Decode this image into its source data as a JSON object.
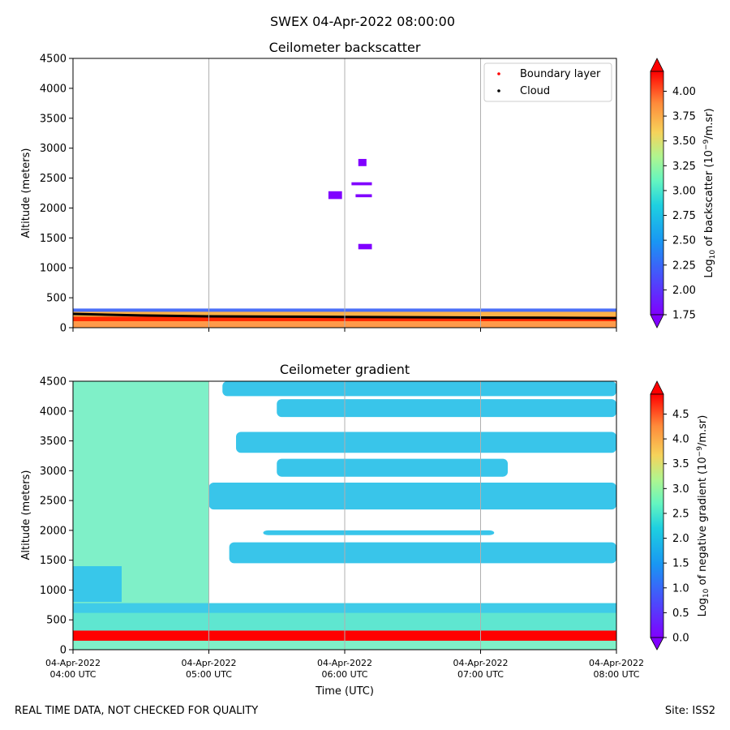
{
  "figure": {
    "title": "SWEX 04-Apr-2022 08:00:00",
    "footer_left": "REAL TIME DATA, NOT CHECKED FOR QUALITY",
    "footer_right": "Site: ISS2"
  },
  "chart_data": [
    {
      "type": "heatmap",
      "title": "Ceilometer backscatter",
      "xlabel": "",
      "ylabel": "Altitude (meters)",
      "ylim": [
        0,
        4500
      ],
      "yticks": [
        0,
        500,
        1000,
        1500,
        2000,
        2500,
        3000,
        3500,
        4000,
        4500
      ],
      "xlim": [
        4,
        8
      ],
      "xticks": [
        4,
        5,
        6,
        7,
        8
      ],
      "grid": "vertical",
      "legend": {
        "placement": "top-right",
        "entries": [
          {
            "label": "Boundary layer",
            "color": "#ff0000"
          },
          {
            "label": "Cloud",
            "color": "#000000"
          }
        ]
      },
      "colorbar": {
        "label": "Log10 of backscatter (10^-9/m.sr)",
        "label_main": "Log",
        "label_sub": "10",
        "label_rest": " of backscatter (10",
        "label_sup": "−9",
        "label_end": "/m.sr)",
        "vmin": 1.75,
        "vmax": 4.2,
        "ticks": [
          "1.75",
          "2.00",
          "2.25",
          "2.50",
          "2.75",
          "3.00",
          "3.25",
          "3.50",
          "3.75",
          "4.00"
        ]
      },
      "features": {
        "surface_layer_top_m": 320,
        "boundary_layer_height_m": [
          230,
          205,
          190,
          185,
          180,
          175,
          170,
          165,
          160
        ],
        "boundary_layer_time_h": [
          4.0,
          4.5,
          5.0,
          5.5,
          6.0,
          6.5,
          7.0,
          7.5,
          8.0
        ],
        "cloud_patches": [
          {
            "t_start_h": 5.88,
            "t_end_h": 5.98,
            "z_bottom_m": 2150,
            "z_top_m": 2280
          },
          {
            "t_start_h": 6.05,
            "t_end_h": 6.2,
            "z_bottom_m": 2380,
            "z_top_m": 2430
          },
          {
            "t_start_h": 6.1,
            "t_end_h": 6.16,
            "z_bottom_m": 2700,
            "z_top_m": 2820
          },
          {
            "t_start_h": 6.08,
            "t_end_h": 6.2,
            "z_bottom_m": 2180,
            "z_top_m": 2230
          },
          {
            "t_start_h": 6.1,
            "t_end_h": 6.2,
            "z_bottom_m": 1310,
            "z_top_m": 1400
          }
        ]
      }
    },
    {
      "type": "heatmap",
      "title": "Ceilometer gradient",
      "xlabel": "Time (UTC)",
      "ylabel": "Altitude (meters)",
      "ylim": [
        0,
        4500
      ],
      "yticks": [
        0,
        500,
        1000,
        1500,
        2000,
        2500,
        3000,
        3500,
        4000,
        4500
      ],
      "xlim": [
        4,
        8
      ],
      "xticks": [
        4,
        5,
        6,
        7,
        8
      ],
      "xtick_labels": [
        [
          "04-Apr-2022",
          "04:00 UTC"
        ],
        [
          "04-Apr-2022",
          "05:00 UTC"
        ],
        [
          "04-Apr-2022",
          "06:00 UTC"
        ],
        [
          "04-Apr-2022",
          "07:00 UTC"
        ],
        [
          "04-Apr-2022",
          "08:00 UTC"
        ]
      ],
      "grid": "vertical",
      "colorbar": {
        "label": "Log10 of negative gradient (10^-9/m.sr)",
        "label_main": "Log",
        "label_sub": "10",
        "label_rest": " of negative gradient (10",
        "label_sup": "−9",
        "label_end": "/m.sr)",
        "vmin": 0.0,
        "vmax": 4.9,
        "ticks": [
          "0.0",
          "0.5",
          "1.0",
          "1.5",
          "2.0",
          "2.5",
          "3.0",
          "3.5",
          "4.0",
          "4.5"
        ]
      },
      "features": {
        "surface_layer_top_m": 320,
        "aerosol_layer_top_m": 780,
        "filled_region_end_h": 5.0,
        "cloud_bands": [
          {
            "t_start_h": 5.15,
            "t_end_h": 8.0,
            "z_bottom_m": 1450,
            "z_top_m": 1800
          },
          {
            "t_start_h": 5.4,
            "t_end_h": 7.1,
            "z_bottom_m": 1920,
            "z_top_m": 2000
          },
          {
            "t_start_h": 5.0,
            "t_end_h": 8.0,
            "z_bottom_m": 2350,
            "z_top_m": 2800
          },
          {
            "t_start_h": 5.5,
            "t_end_h": 7.2,
            "z_bottom_m": 2900,
            "z_top_m": 3200
          },
          {
            "t_start_h": 5.2,
            "t_end_h": 8.0,
            "z_bottom_m": 3300,
            "z_top_m": 3650
          },
          {
            "t_start_h": 5.5,
            "t_end_h": 8.0,
            "z_bottom_m": 3900,
            "z_top_m": 4200
          },
          {
            "t_start_h": 5.1,
            "t_end_h": 8.0,
            "z_bottom_m": 4250,
            "z_top_m": 4500
          }
        ]
      }
    }
  ]
}
